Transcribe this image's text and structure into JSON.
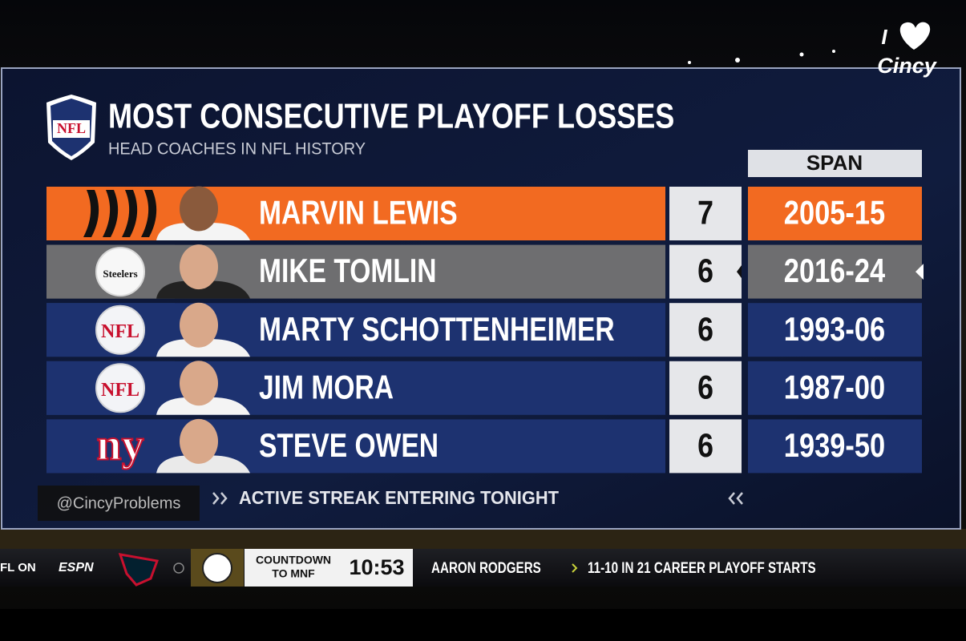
{
  "header": {
    "title": "MOST CONSECUTIVE PLAYOFF LOSSES",
    "subtitle": "HEAD COACHES IN NFL HISTORY",
    "logo": "NFL"
  },
  "table": {
    "column": "SPAN",
    "rows": [
      {
        "name": "MARVIN LEWIS",
        "losses": 7,
        "span": "2005-15",
        "color": "#f26a21"
      },
      {
        "name": "MIKE TOMLIN",
        "losses": 6,
        "span": "2016-24",
        "color": "#6e6e70",
        "logo": "Steelers",
        "active": true
      },
      {
        "name": "MARTY SCHOTTENHEIMER",
        "losses": 6,
        "span": "1993-06",
        "color": "#1d3270",
        "logo": "NFL"
      },
      {
        "name": "JIM MORA",
        "losses": 6,
        "span": "1987-00",
        "color": "#1d3270",
        "logo": "NFL"
      },
      {
        "name": "STEVE OWEN",
        "losses": 6,
        "span": "1939-50",
        "color": "#1d3270",
        "logo": "ny"
      }
    ]
  },
  "note": "ACTIVE STREAK ENTERING TONIGHT",
  "watermark": "@CincyProblems",
  "brand": {
    "top": "I",
    "bottom": "Cincy"
  },
  "ticker": {
    "network": "FL ON",
    "espn": "ESPN",
    "countdown": [
      "COUNTDOWN",
      "TO MNF"
    ],
    "clock": "10:53",
    "player": "AARON RODGERS",
    "stat": "11-10 IN 21 CAREER PLAYOFF STARTS"
  }
}
